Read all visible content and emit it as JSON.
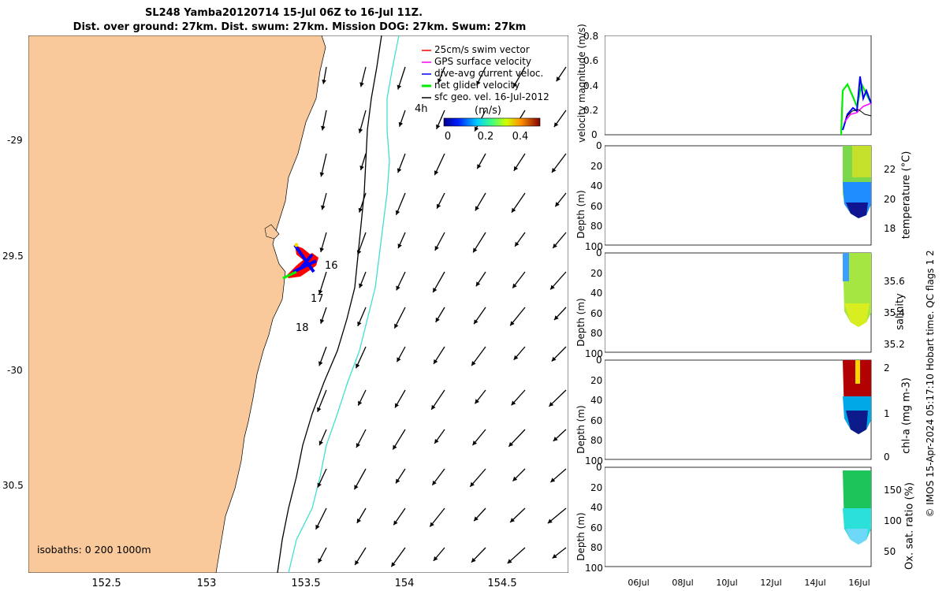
{
  "title": {
    "line1": "SL248 Yamba20120714 15-Jul 06Z to 16-Jul 11Z.",
    "line2": "Dist. over ground: 27km. Dist. swum: 27km. Mission DOG: 27km. Swum: 27km"
  },
  "map": {
    "lat_labels": [
      "-29",
      "29.5",
      "-30",
      "30.5"
    ],
    "lon_labels": [
      "152.5",
      "153",
      "153.5",
      "154",
      "154.5"
    ],
    "isobaths_label": "isobaths: 0   200  1000m",
    "annotations": [
      "16",
      "17",
      "18",
      "4h"
    ],
    "legend": [
      {
        "label": "25cm/s swim vector",
        "color": "#ff0000"
      },
      {
        "label": "GPS surface velocity",
        "color": "#ff00ff"
      },
      {
        "label": "dive-avg current veloc.",
        "color": "#0000ff"
      },
      {
        "label": "net glider velocity",
        "color": "#00ee00"
      },
      {
        "label": "sfc geo. vel. 16-Jul-2012",
        "color": "#000000"
      }
    ],
    "colorbar": {
      "unit": "(m/s)",
      "ticks": [
        "0",
        "0.2",
        "0.4"
      ]
    },
    "colors": {
      "land": "#f9c99b",
      "isobath_200": "#000000",
      "isobath_1000": "#40e0d0"
    }
  },
  "panels": {
    "velocity": {
      "ylabel": "velocity magnitude (m/s)",
      "yticks": [
        "0.8",
        "0.6",
        "0.4",
        "0.2",
        "0"
      ]
    },
    "depth_ylabel": "Depth (m)",
    "depth_ticks": [
      "0",
      "20",
      "40",
      "60",
      "80",
      "100"
    ],
    "temperature": {
      "label": "temperature (°C)",
      "cbar_ticks": [
        "22",
        "20",
        "18"
      ]
    },
    "salinity": {
      "label": "salinity",
      "cbar_ticks": [
        "35.6",
        "35.4",
        "35.2"
      ]
    },
    "chla": {
      "label": "chl-a (mg m-3)",
      "cbar_ticks": [
        "2",
        "1",
        "0"
      ]
    },
    "oxygen": {
      "label": "Ox. sat. ratio (%)",
      "cbar_ticks": [
        "150",
        "100",
        "50"
      ]
    },
    "xticks": [
      "06Jul",
      "08Jul",
      "10Jul",
      "12Jul",
      "14Jul",
      "16Jul"
    ]
  },
  "footer": "© IMOS 15-Apr-2024 05:17:10 Hobart time. QC flags 1  2"
}
